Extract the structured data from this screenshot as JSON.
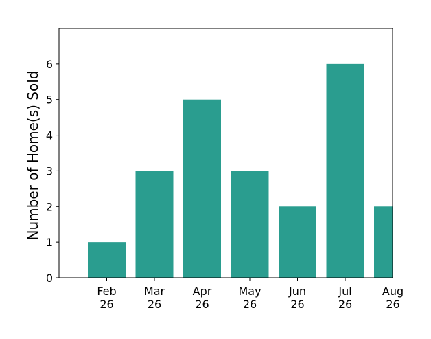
{
  "chart_data": {
    "type": "bar",
    "categories": [
      "Feb\n26",
      "Mar\n26",
      "Apr\n26",
      "May\n26",
      "Jun\n26",
      "Jul\n26",
      "Aug\n26"
    ],
    "values": [
      1,
      3,
      5,
      3,
      2,
      6,
      2
    ],
    "title": "",
    "xlabel": "",
    "ylabel": "Number of Home(s) Sold",
    "ylim": [
      0,
      7
    ],
    "yticks": [
      "0",
      "1",
      "2",
      "3",
      "4",
      "5",
      "6"
    ],
    "grid": false,
    "legend": "none",
    "bar_color": "#2a9d8f"
  }
}
